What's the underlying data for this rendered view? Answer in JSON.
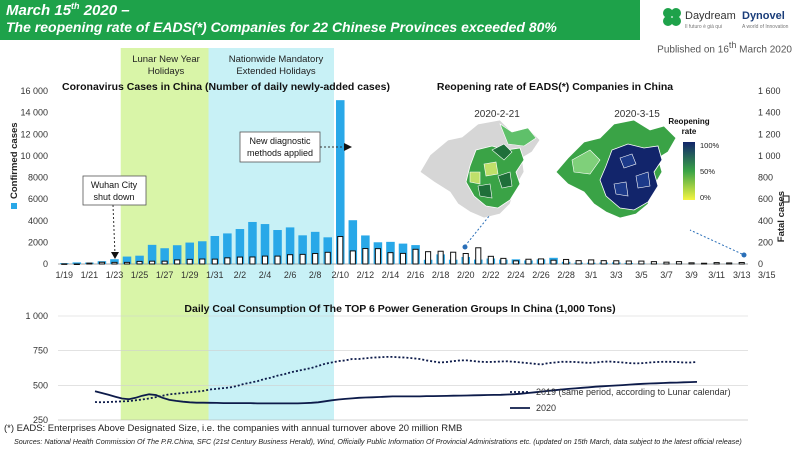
{
  "header": {
    "title_line1_main": "March 15",
    "title_line1_sup": "th",
    "title_line1_rest": " 2020 –",
    "title_line2": "The reopening rate of EADS(*) Companies for 22 Chinese Provinces exceeded 80%",
    "published_pre": "Published on 16",
    "published_sup": "th",
    "published_post": " March 2020",
    "logo_daydream": "Daydream",
    "logo_daydream_sub": "Il futuro è già qui",
    "logo_dynovel": "Dynovel",
    "logo_dynovel_sub": "A world of Innovation",
    "logo_color": "#1ea24a"
  },
  "footer": {
    "footnote": "(*) EADS: Enterprises Above Designated Size, i.e. the companies with annual turnover above 20 million RMB",
    "sources": "Sources: National Health Commission Of The P.R.China, SFC (21st Century Business Herald), Wind, Officially Public Information Of Provincial Administrations etc. (updated on 15th March, data subject to the latest official release)"
  },
  "chart_data": [
    {
      "type": "bar",
      "title": "Coronavirus Cases in China (Number of daily newly-added cases)",
      "ylabel": "Confirmed cases",
      "y2label": "Fatal cases",
      "ylim": [
        0,
        16000
      ],
      "y2lim": [
        0,
        1600
      ],
      "yticks": [
        "0",
        "2000",
        "4000",
        "6000",
        "8000",
        "10 000",
        "12 000",
        "14 000",
        "16 000"
      ],
      "y2ticks": [
        "0",
        "200",
        "400",
        "600",
        "800",
        "1 000",
        "1 200",
        "1 400",
        "1 600"
      ],
      "xtick_labels": [
        "1/19",
        "1/21",
        "1/23",
        "1/25",
        "1/27",
        "1/29",
        "1/31",
        "2/2",
        "2/4",
        "2/6",
        "2/8",
        "2/10",
        "2/12",
        "2/14",
        "2/16",
        "2/18",
        "2/20",
        "2/22",
        "2/24",
        "2/26",
        "2/28",
        "3/1",
        "3/3",
        "3/5",
        "3/7",
        "3/9",
        "3/11",
        "3/13",
        "3/15"
      ],
      "start_date": "1/19",
      "series": [
        {
          "name": "Confirmed cases",
          "color": "#29a8e8",
          "values": [
            77,
            149,
            131,
            259,
            444,
            688,
            769,
            1771,
            1459,
            1737,
            1982,
            2102,
            2590,
            2829,
            3235,
            3887,
            3694,
            3143,
            3385,
            2652,
            2973,
            2467,
            15152,
            4050,
            2641,
            2009,
            2048,
            1886,
            1749,
            394,
            889,
            397,
            648,
            409,
            508,
            406,
            433,
            327,
            427,
            573,
            202,
            125,
            119,
            139,
            143,
            99,
            44,
            40,
            19,
            24,
            15,
            8,
            11,
            20,
            16
          ]
        },
        {
          "name": "Fatal cases",
          "color": "#111111",
          "values": [
            1,
            0,
            8,
            16,
            15,
            15,
            24,
            26,
            26,
            38,
            43,
            46,
            45,
            57,
            64,
            65,
            73,
            73,
            86,
            89,
            97,
            108,
            254,
            121,
            143,
            142,
            105,
            98,
            136,
            114,
            118,
            109,
            97,
            150,
            71,
            52,
            29,
            44,
            47,
            35,
            42,
            31,
            38,
            31,
            30,
            28,
            27,
            22,
            17,
            22,
            11,
            7,
            13,
            10,
            14
          ]
        }
      ],
      "annotations": [
        {
          "text": "Wuhan City shut down",
          "date": "1/23"
        },
        {
          "text": "New diagnostic methods applied",
          "date": "2/12"
        }
      ],
      "bands": [
        {
          "label": "Lunar New Year Holidays",
          "from": "1/24",
          "to": "1/31",
          "color": "#d9f5a8"
        },
        {
          "label": "Nationwide Mandatory Extended Holidays",
          "from": "1/31",
          "to": "2/9",
          "color": "#c8f1f6"
        }
      ]
    },
    {
      "type": "map",
      "title": "Reopening rate of EADS(*) Companies in China",
      "panels": [
        "2020-2-21",
        "2020-3-15"
      ],
      "legend_title": "Reopening rate",
      "legend_ticks": [
        "100%",
        "50%",
        "0%"
      ],
      "colors": {
        "low": "#f5f542",
        "mid": "#3aa346",
        "high": "#12256b",
        "nodata": "#d6d6d6"
      }
    },
    {
      "type": "line",
      "title": "Daily Coal Consumption Of The TOP 6 Power Generation Groups In China  (1,000 Tons)",
      "ylim": [
        250,
        1000
      ],
      "yticks": [
        "250",
        "500",
        "750",
        "1 000"
      ],
      "series": [
        {
          "name": "2019 (same period, according to Lunar calendar)",
          "style": "dotted",
          "color": "#0d1b4a",
          "values": [
            380,
            378,
            380,
            382,
            384,
            386,
            392,
            398,
            405,
            415,
            425,
            435,
            440,
            445,
            450,
            455,
            460,
            470,
            475,
            480,
            485,
            495,
            510,
            520,
            530,
            545,
            555,
            570,
            580,
            595,
            605,
            615,
            625,
            640,
            655,
            665,
            675,
            680,
            690,
            690,
            695,
            700,
            702,
            705,
            705,
            702,
            700,
            695,
            690,
            680,
            672,
            665,
            668,
            675,
            680,
            680,
            675,
            670,
            668,
            670,
            672,
            673,
            670,
            665,
            660,
            655,
            650,
            660,
            665,
            670,
            670,
            668,
            665,
            662,
            665,
            670,
            672,
            668,
            665,
            660,
            658,
            660,
            665,
            668,
            670,
            670,
            668,
            665,
            665,
            668
          ]
        },
        {
          "name": "2020",
          "style": "solid",
          "color": "#0d1b4a",
          "values": [
            458,
            445,
            432,
            418,
            405,
            400,
            410,
            425,
            435,
            430,
            410,
            395,
            388,
            382,
            378,
            375,
            375,
            374,
            373,
            372,
            372,
            372,
            372,
            372,
            370,
            370,
            370,
            370,
            370,
            370,
            370,
            372,
            374,
            378,
            385,
            392,
            398,
            402,
            406,
            410,
            412,
            414,
            416,
            418,
            420,
            420,
            420,
            420,
            420,
            422,
            422,
            423,
            424,
            425,
            426,
            427,
            428,
            429,
            430,
            431,
            432,
            434,
            436,
            440,
            445,
            450,
            455,
            460,
            465,
            470,
            474,
            478,
            482,
            486,
            490,
            493,
            496,
            499,
            502,
            505,
            508,
            511,
            513,
            515,
            517,
            519,
            520,
            522,
            523,
            525
          ]
        }
      ]
    }
  ]
}
